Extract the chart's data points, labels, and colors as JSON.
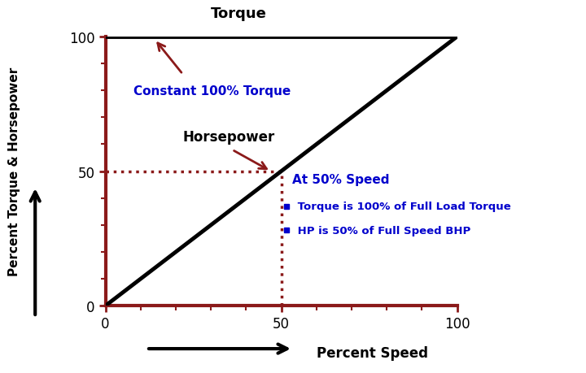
{
  "bg_color": "#ffffff",
  "axis_color": "#8B1A1A",
  "line_color": "#000000",
  "dashed_color": "#8B1A1A",
  "annotation_color": "#0000CC",
  "arrow_color": "#8B1A1A",
  "title_torque": "Torque",
  "title_hp": "Horsepower",
  "xlabel": "Percent Speed",
  "ylabel": "Percent Torque & Horsepower",
  "label_constant": "Constant 100% Torque",
  "label_at50": "At 50% Speed",
  "label_torque_note": " Torque is 100% of Full Load Torque",
  "label_hp_note": " HP is 50% of Full Speed BHP",
  "xlim": [
    0,
    100
  ],
  "ylim": [
    0,
    100
  ],
  "xticks": [
    0,
    50,
    100
  ],
  "yticks": [
    0,
    50,
    100
  ]
}
